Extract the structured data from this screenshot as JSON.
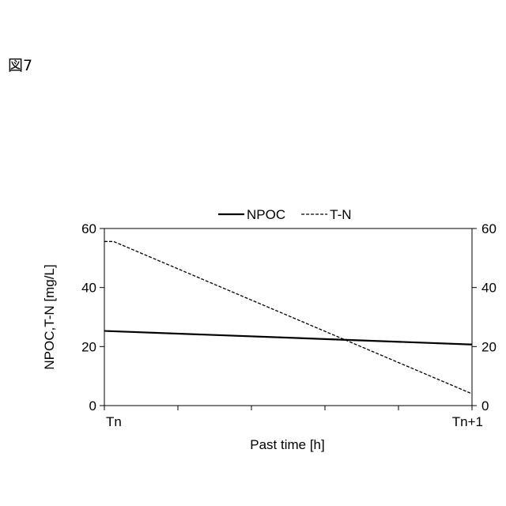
{
  "figure_label": "図7",
  "chart_data": {
    "type": "line",
    "x_categories": [
      "Tn",
      "Tn+1"
    ],
    "x_range": [
      0,
      1
    ],
    "x_minor_tick_count": 5,
    "xlabel": "Past time [h]",
    "ylabel": "NPOC,T-N [mg/L]",
    "ylim": [
      0,
      60
    ],
    "yticks": [
      0,
      20,
      40,
      60
    ],
    "y2lim": [
      0,
      60
    ],
    "y2ticks": [
      0,
      20,
      40,
      60
    ],
    "grid": false,
    "legend_position": "top",
    "series": [
      {
        "name": "NPOC",
        "style": "solid",
        "color": "#000000",
        "x": [
          0,
          1
        ],
        "y": [
          25.3,
          20.7
        ]
      },
      {
        "name": "T-N",
        "style": "dashed",
        "color": "#000000",
        "x": [
          0,
          0.025,
          1
        ],
        "y": [
          55.6,
          55.6,
          4.0
        ]
      }
    ]
  }
}
